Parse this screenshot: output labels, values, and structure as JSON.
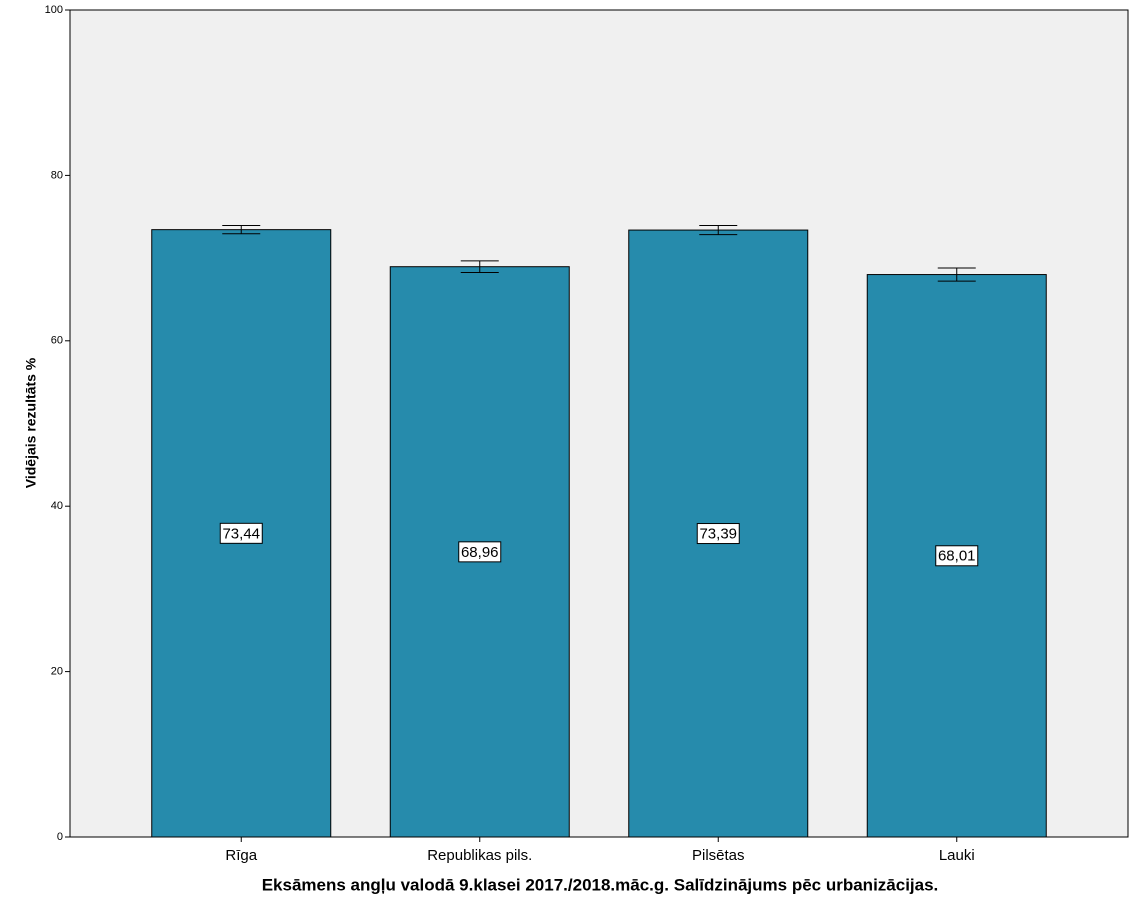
{
  "chart_data": {
    "type": "bar",
    "x_label": "Eksāmens angļu valodā 9.klasei 2017./2018.māc.g. Salīdzinājums pēc urbanizācijas.",
    "y_label": "Vidējais rezultāts %",
    "categories": [
      "Rīga",
      "Republikas pils.",
      "Pilsētas",
      "Lauki"
    ],
    "values": [
      73.44,
      68.96,
      73.39,
      68.01
    ],
    "value_labels": [
      "73,44",
      "68,96",
      "73,39",
      "68,01"
    ],
    "errors": [
      0.5,
      0.7,
      0.55,
      0.8
    ],
    "color": "#268bac",
    "ylim": [
      0,
      100
    ],
    "yticks": [
      0,
      20,
      40,
      60,
      80,
      100
    ]
  }
}
